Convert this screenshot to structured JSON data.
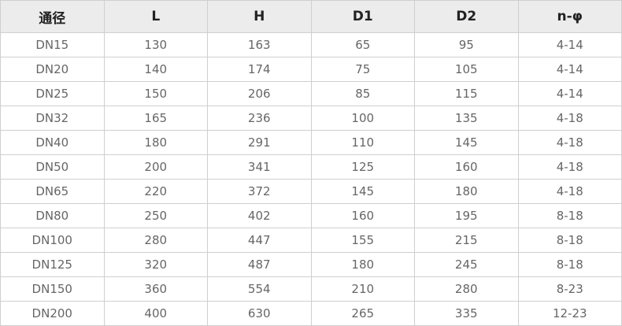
{
  "table": {
    "headers": [
      "通径",
      "L",
      "H",
      "D1",
      "D2",
      "n-φ"
    ],
    "rows": [
      [
        "DN15",
        "130",
        "163",
        "65",
        "95",
        "4-14"
      ],
      [
        "DN20",
        "140",
        "174",
        "75",
        "105",
        "4-14"
      ],
      [
        "DN25",
        "150",
        "206",
        "85",
        "115",
        "4-14"
      ],
      [
        "DN32",
        "165",
        "236",
        "100",
        "135",
        "4-18"
      ],
      [
        "DN40",
        "180",
        "291",
        "110",
        "145",
        "4-18"
      ],
      [
        "DN50",
        "200",
        "341",
        "125",
        "160",
        "4-18"
      ],
      [
        "DN65",
        "220",
        "372",
        "145",
        "180",
        "4-18"
      ],
      [
        "DN80",
        "250",
        "402",
        "160",
        "195",
        "8-18"
      ],
      [
        "DN100",
        "280",
        "447",
        "155",
        "215",
        "8-18"
      ],
      [
        "DN125",
        "320",
        "487",
        "180",
        "245",
        "8-18"
      ],
      [
        "DN150",
        "360",
        "554",
        "210",
        "280",
        "8-23"
      ],
      [
        "DN200",
        "400",
        "630",
        "265",
        "335",
        "12-23"
      ]
    ]
  }
}
